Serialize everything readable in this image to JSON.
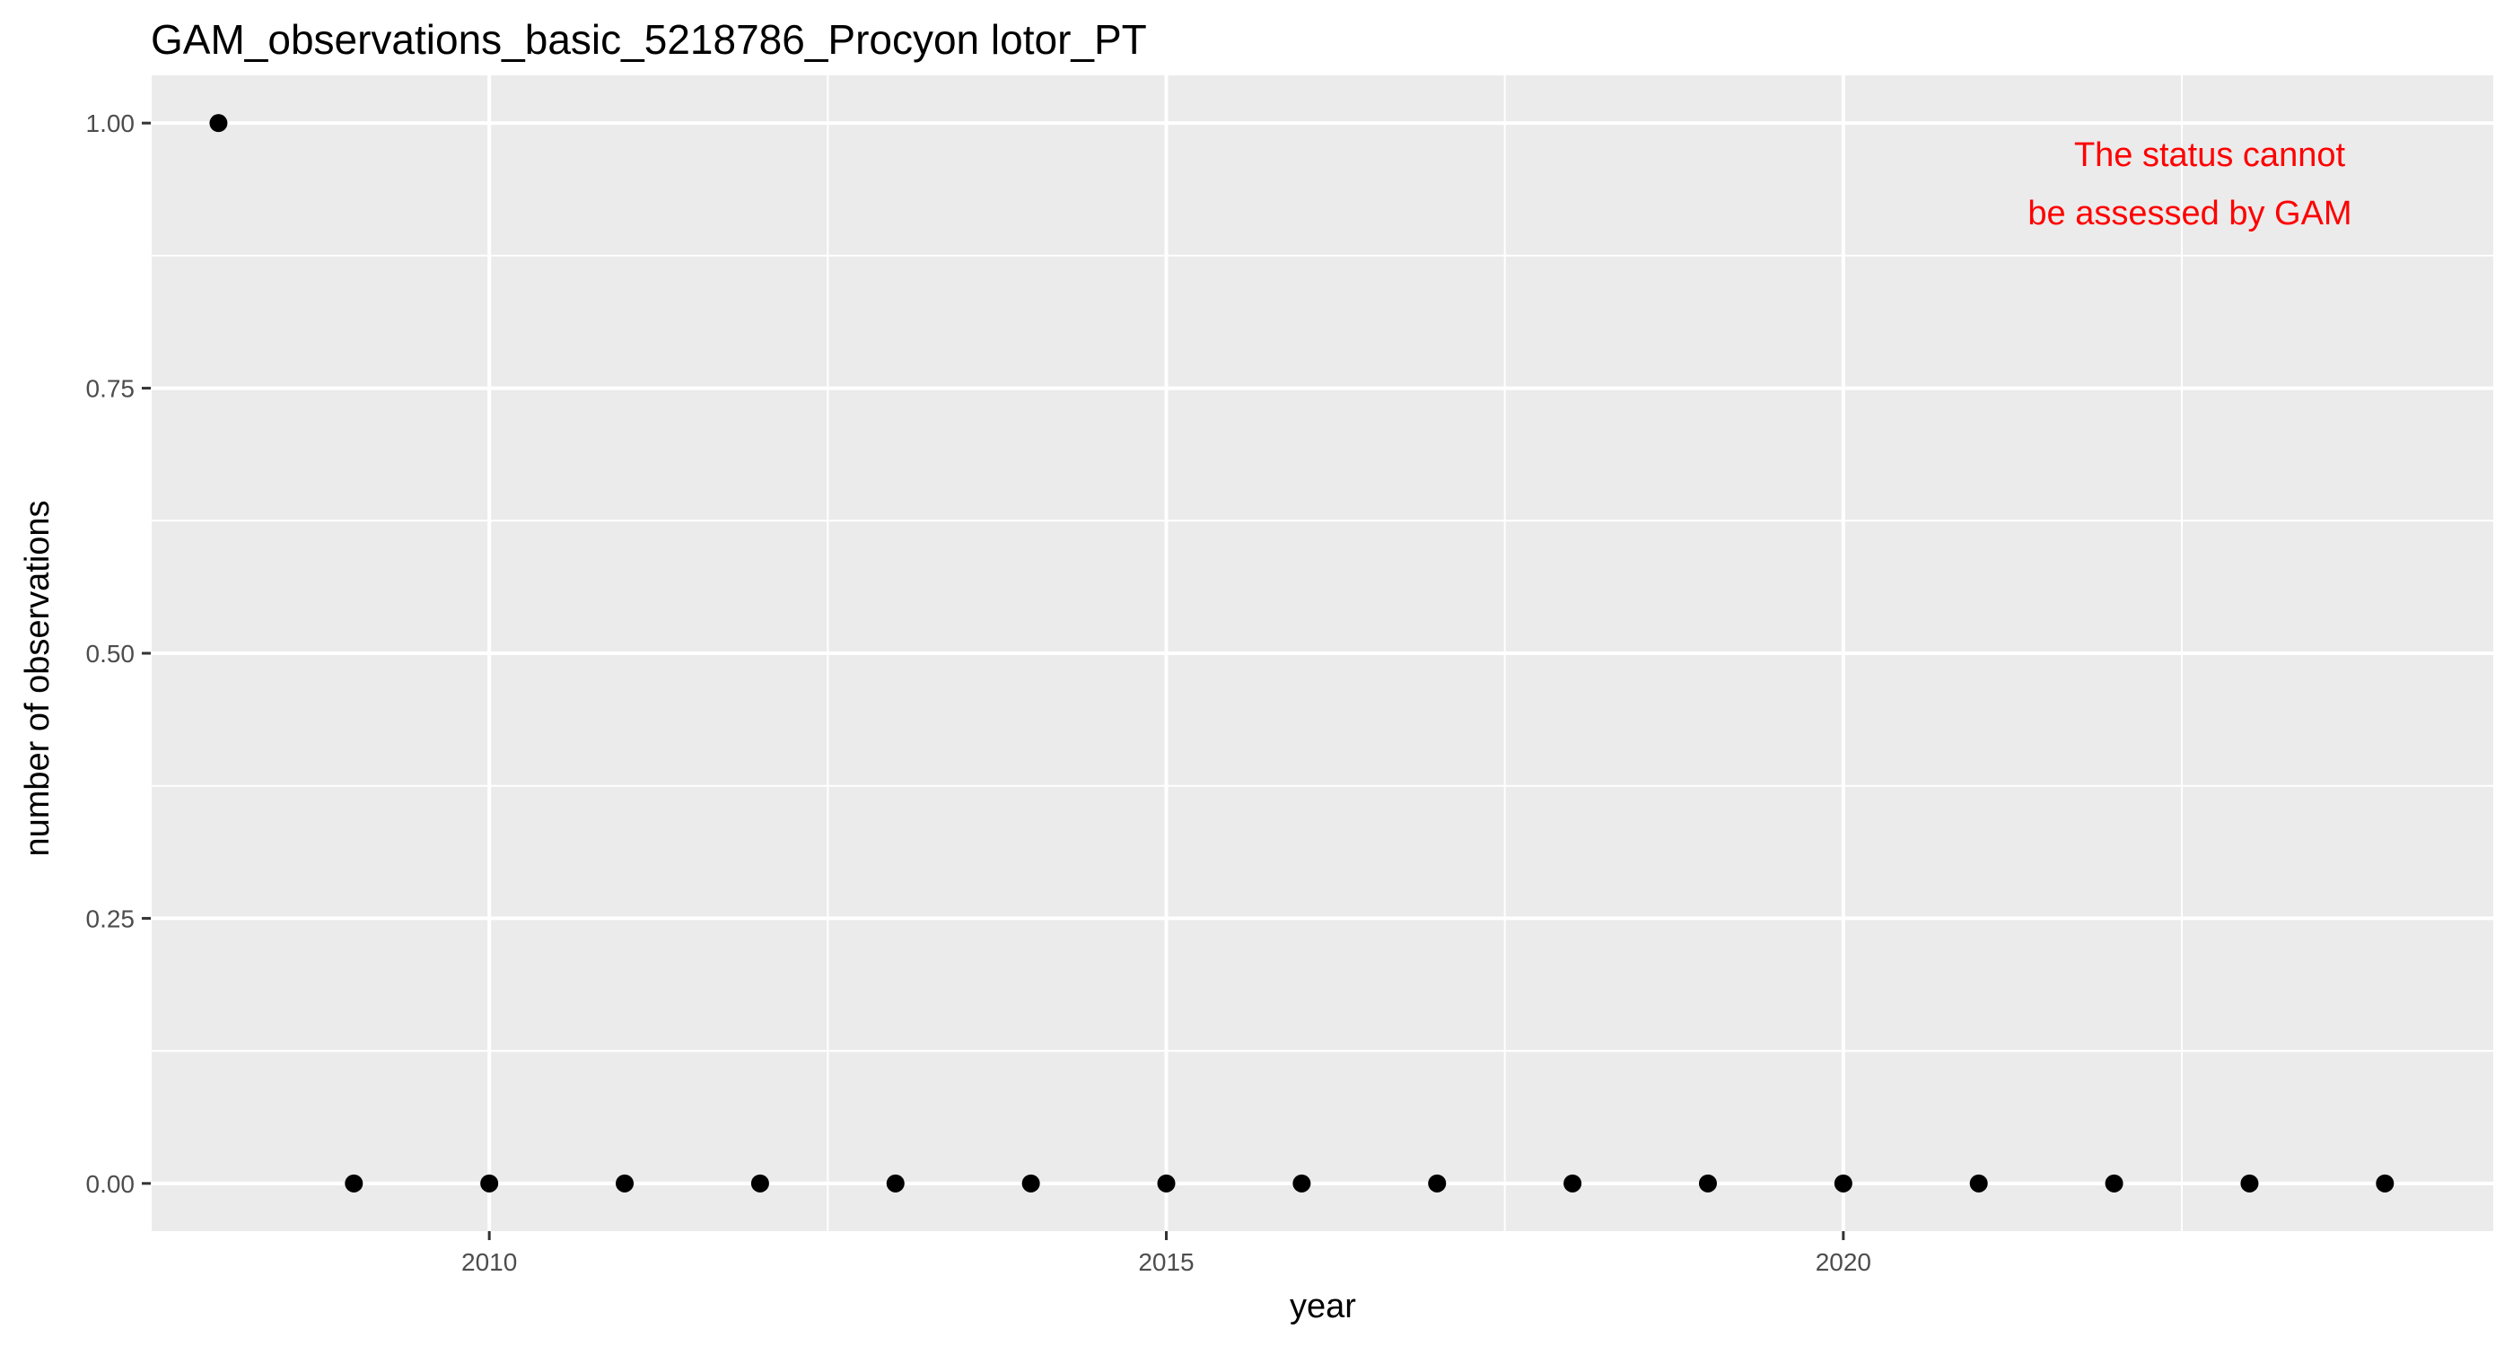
{
  "chart_data": {
    "type": "scatter",
    "title": "GAM_observations_basic_5218786_Procyon lotor_PT",
    "xlabel": "year",
    "ylabel": "number of observations",
    "xlim": [
      2007.5,
      2024.8
    ],
    "ylim": [
      -0.045,
      1.045
    ],
    "x_ticks": [
      2010,
      2015,
      2020
    ],
    "x_minor_ticks": [
      2007.5,
      2012.5,
      2017.5,
      2022.5
    ],
    "y_ticks": [
      0.0,
      0.25,
      0.5,
      0.75,
      1.0
    ],
    "y_tick_labels": [
      "0.00",
      "0.25",
      "0.50",
      "0.75",
      "1.00"
    ],
    "y_minor_ticks": [
      0.125,
      0.375,
      0.625,
      0.875
    ],
    "grid": true,
    "legend": "none",
    "series": [
      {
        "x": [
          2008,
          2009,
          2010,
          2011,
          2012,
          2013,
          2014,
          2015,
          2016,
          2017,
          2018,
          2019,
          2020,
          2021,
          2022,
          2023,
          2024
        ],
        "y": [
          1,
          0,
          0,
          0,
          0,
          0,
          0,
          0,
          0,
          0,
          0,
          0,
          0,
          0,
          0,
          0,
          0
        ],
        "color": "#000000"
      }
    ],
    "annotation": {
      "lines": [
        "The status cannot",
        "be assessed by GAM"
      ],
      "color": "#ff0000"
    },
    "panel_background": "#ebebeb",
    "grid_color": "#ffffff"
  }
}
